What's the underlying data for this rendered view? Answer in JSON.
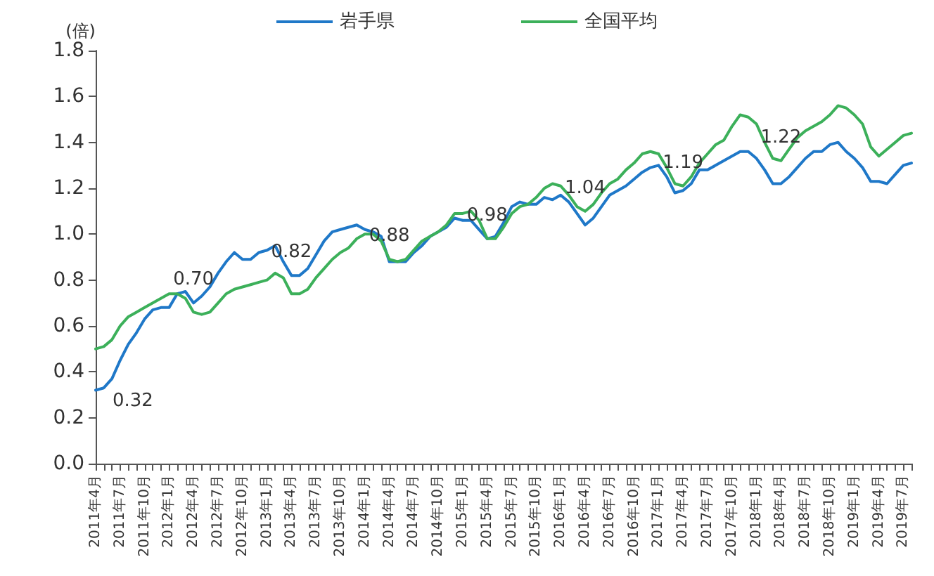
{
  "chart_data": {
    "type": "line",
    "ylabel": "(倍)",
    "legend": "top",
    "grid": false,
    "marker": "none",
    "line_style": "solid",
    "ylim": [
      0,
      1.8
    ],
    "yticks": [
      {
        "value": 0,
        "label": "0.0"
      },
      {
        "value": 0.2,
        "label": "0.2"
      },
      {
        "value": 0.4,
        "label": "0.4"
      },
      {
        "value": 0.6,
        "label": "0.6"
      },
      {
        "value": 0.8,
        "label": "0.8"
      },
      {
        "value": 1,
        "label": "1.0"
      },
      {
        "value": 1.2,
        "label": "1.2"
      },
      {
        "value": 1.4,
        "label": "1.4"
      },
      {
        "value": 1.6,
        "label": "1.6"
      },
      {
        "value": 1.8,
        "label": "1.8"
      }
    ],
    "categories": [
      "2011年4月",
      null,
      null,
      "2011年7月",
      null,
      null,
      "2011年10月",
      null,
      null,
      "2012年1月",
      null,
      null,
      "2012年4月",
      null,
      null,
      "2012年7月",
      null,
      null,
      "2012年10月",
      null,
      null,
      "2013年1月",
      null,
      null,
      "2013年4月",
      null,
      null,
      "2013年7月",
      null,
      null,
      "2013年10月",
      null,
      null,
      "2014年1月",
      null,
      null,
      "2014年4月",
      null,
      null,
      "2014年7月",
      null,
      null,
      "2014年10月",
      null,
      null,
      "2015年1月",
      null,
      null,
      "2015年4月",
      null,
      null,
      "2015年7月",
      null,
      null,
      "2015年10月",
      null,
      null,
      "2016年1月",
      null,
      null,
      "2016年4月",
      null,
      null,
      "2016年7月",
      null,
      null,
      "2016年10月",
      null,
      null,
      "2017年1月",
      null,
      null,
      "2017年4月",
      null,
      null,
      "2017年7月",
      null,
      null,
      "2017年10月",
      null,
      null,
      "2018年1月",
      null,
      null,
      "2018年4月",
      null,
      null,
      "2018年7月",
      null,
      null,
      "2018年10月",
      null,
      null,
      "2019年1月",
      null,
      null,
      "2019年4月",
      null,
      null,
      "2019年7月",
      null
    ],
    "series": [
      {
        "name": "岩手県",
        "color": "#1f78c8",
        "values": [
          0.32,
          0.33,
          0.37,
          0.45,
          0.52,
          0.57,
          0.63,
          0.67,
          0.68,
          0.68,
          0.74,
          0.75,
          0.7,
          0.73,
          0.77,
          0.83,
          0.88,
          0.92,
          0.89,
          0.89,
          0.92,
          0.93,
          0.95,
          0.88,
          0.82,
          0.82,
          0.85,
          0.91,
          0.97,
          1.01,
          1.02,
          1.03,
          1.04,
          1.02,
          1.01,
          0.99,
          0.88,
          0.88,
          0.88,
          0.92,
          0.95,
          0.99,
          1.01,
          1.03,
          1.07,
          1.06,
          1.06,
          1.02,
          0.98,
          0.99,
          1.05,
          1.12,
          1.14,
          1.13,
          1.13,
          1.16,
          1.15,
          1.17,
          1.14,
          1.09,
          1.04,
          1.07,
          1.12,
          1.17,
          1.19,
          1.21,
          1.24,
          1.27,
          1.29,
          1.3,
          1.25,
          1.18,
          1.19,
          1.22,
          1.28,
          1.28,
          1.3,
          1.32,
          1.34,
          1.36,
          1.36,
          1.33,
          1.28,
          1.22,
          1.22,
          1.25,
          1.29,
          1.33,
          1.36,
          1.36,
          1.39,
          1.4,
          1.36,
          1.33,
          1.29,
          1.23,
          1.23,
          1.22,
          1.26,
          1.3,
          1.31
        ]
      },
      {
        "name": "全国平均",
        "color": "#3cb05a",
        "values": [
          0.5,
          0.51,
          0.54,
          0.6,
          0.64,
          0.66,
          0.68,
          0.7,
          0.72,
          0.74,
          0.74,
          0.72,
          0.66,
          0.65,
          0.66,
          0.7,
          0.74,
          0.76,
          0.77,
          0.78,
          0.79,
          0.8,
          0.83,
          0.81,
          0.74,
          0.74,
          0.76,
          0.81,
          0.85,
          0.89,
          0.92,
          0.94,
          0.98,
          1.0,
          1.0,
          0.97,
          0.89,
          0.88,
          0.89,
          0.93,
          0.97,
          0.99,
          1.01,
          1.04,
          1.09,
          1.09,
          1.1,
          1.06,
          0.98,
          0.98,
          1.03,
          1.09,
          1.12,
          1.13,
          1.16,
          1.2,
          1.22,
          1.21,
          1.17,
          1.12,
          1.1,
          1.13,
          1.18,
          1.22,
          1.24,
          1.28,
          1.31,
          1.35,
          1.36,
          1.35,
          1.29,
          1.22,
          1.21,
          1.25,
          1.31,
          1.35,
          1.39,
          1.41,
          1.47,
          1.52,
          1.51,
          1.48,
          1.4,
          1.33,
          1.32,
          1.37,
          1.42,
          1.45,
          1.47,
          1.49,
          1.52,
          1.56,
          1.55,
          1.52,
          1.48,
          1.38,
          1.34,
          1.37,
          1.4,
          1.43,
          1.44
        ]
      }
    ],
    "annotations": [
      {
        "text": "0.32",
        "x": "2011年4月",
        "y": 0.32
      },
      {
        "text": "0.70",
        "x": "2012年4月",
        "y": 0.7
      },
      {
        "text": "0.82",
        "x": "2013年4月",
        "y": 0.82
      },
      {
        "text": "0.88",
        "x": "2014年4月",
        "y": 0.88
      },
      {
        "text": "0.98",
        "x": "2015年4月",
        "y": 0.98
      },
      {
        "text": "1.04",
        "x": "2016年4月",
        "y": 1.04
      },
      {
        "text": "1.19",
        "x": "2017年4月",
        "y": 1.19
      },
      {
        "text": "1.22",
        "x": "2018年4月",
        "y": 1.22
      }
    ]
  }
}
